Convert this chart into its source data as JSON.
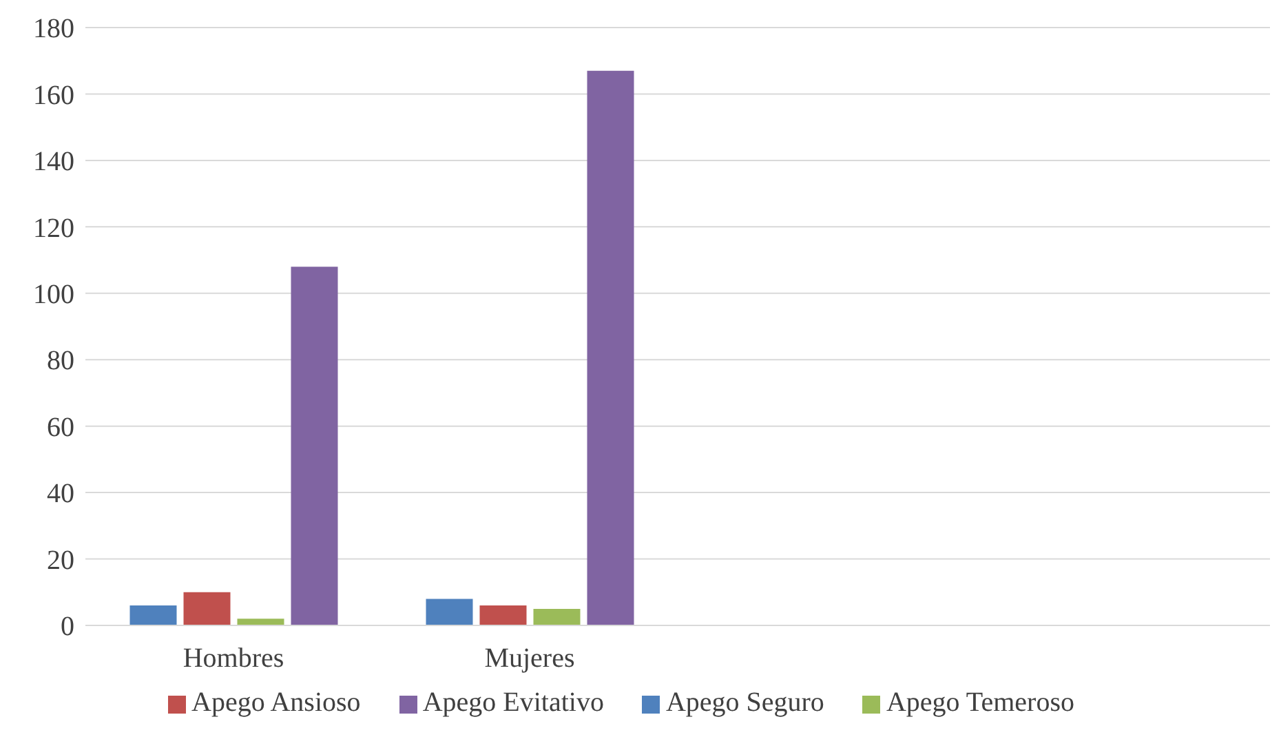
{
  "chart_data": {
    "type": "bar",
    "categories": [
      "Hombres",
      "Mujeres",
      null,
      null
    ],
    "series": [
      {
        "name": "Apego Seguro",
        "color": "#4f81bd",
        "values": [
          6,
          8,
          null,
          null
        ]
      },
      {
        "name": "Apego Ansioso",
        "color": "#c0504d",
        "values": [
          10,
          6,
          null,
          null
        ]
      },
      {
        "name": "Apego Temeroso",
        "color": "#9bbb59",
        "values": [
          2,
          5,
          null,
          null
        ]
      },
      {
        "name": "Apego Evitativo",
        "color": "#8064a2",
        "values": [
          108,
          167,
          null,
          null
        ]
      }
    ],
    "ylim": [
      0,
      180
    ],
    "yticks": [
      0,
      20,
      40,
      60,
      80,
      100,
      120,
      140,
      160,
      180
    ],
    "grid": "y",
    "legend": "bottom"
  }
}
